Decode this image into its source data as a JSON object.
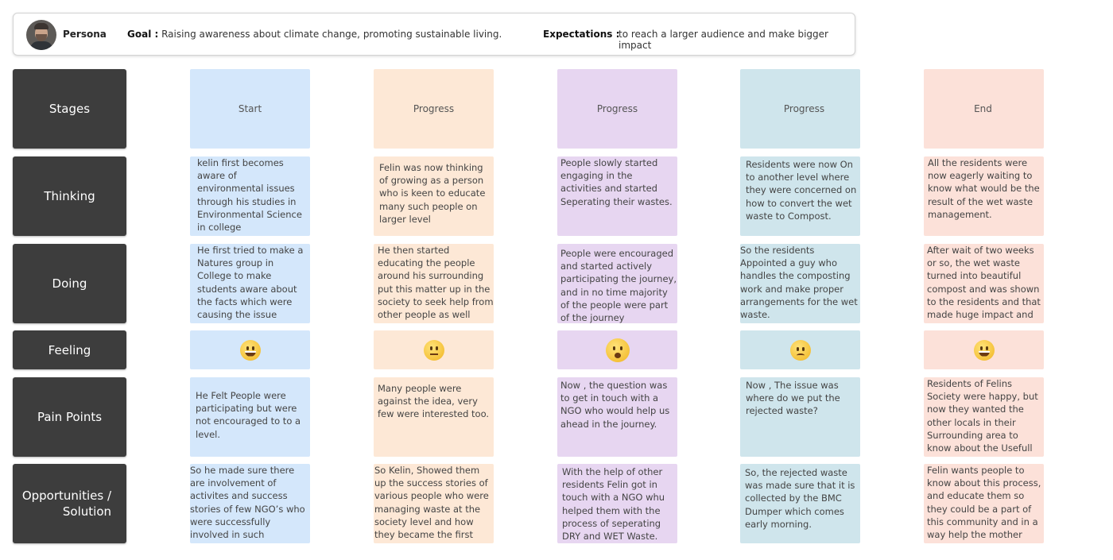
{
  "persona": {
    "label": "Persona",
    "goal_label": "Goal :",
    "goal_text": "Raising awareness about climate change, promoting sustainable living.",
    "expectations_label": "Expectations :",
    "expectations_text": "to reach a larger audience and make bigger impact"
  },
  "rows": {
    "stages": "Stages",
    "thinking": "Thinking",
    "doing": "Doing",
    "feeling": "Feeling",
    "pain_points": "Pain Points",
    "opportunities_line1": "Opportunities /",
    "opportunities_line2": "Solution"
  },
  "colors": {
    "col1": "#d4e7fb",
    "col2": "#fde8d6",
    "col3": "#e7d6f1",
    "col4": "#cfe5ec",
    "col5": "#fce1d9",
    "row_label_bg": "#3d3d3d"
  },
  "columns": [
    {
      "stage": "Start",
      "thinking": "kelin  first becomes aware of environmental issues through his studies in Environmental Science in college",
      "doing": "He  first tried to make a Natures group in College to make students aware about the facts which were causing the issue",
      "feeling_icon": "grinning-face-emoji",
      "pain_points": "He Felt People were participating but were not encouraged  to to a level.",
      "opportunities": "So he made sure there are involvement of activites and success stories of few NGO’s who were successfully involved in such activities"
    },
    {
      "stage": "Progress",
      "thinking": "Felin was now thinking of growing as a person who is keen to educate many such people on larger level",
      "doing": "He then started  educating the people around his surrounding put this matter up in the society to seek help from other people as well",
      "feeling_icon": "neutral-face-emoji",
      "pain_points": "Many people were against the  idea, very few were interested too.",
      "opportunities": "So Kelin, Showed them up the success stories of various people who were managing waste at the society level and how they became the first Garbage free soc in their area."
    },
    {
      "stage": "Progress",
      "thinking": "People slowly started engaging in the activities and started Seperating their wastes.",
      "doing": "People were encouraged and started actively participating the journey, and in no time majority of the people were part of the journey",
      "feeling_icon": "hushed-face-emoji",
      "pain_points": "Now , the question was to get in touch with a NGO who would help us ahead in the journey.",
      "opportunities": "With the help of other residents Felin got in touch with a NGO whu helped them with the process of seperating DRY and WET Waste."
    },
    {
      "stage": "Progress",
      "thinking": "Residents were now On to another level where they were concerned on how to convert the wet waste to Compost.",
      "doing": "So the residents Appointed a guy who handles the composting work and make proper arrangements for the wet waste.",
      "feeling_icon": "worried-face-emoji",
      "pain_points": "Now , The issue was where do we put the rejected waste?",
      "opportunities": "So, the rejected waste was made sure that it is collected by the BMC Dumper which comes early morning."
    },
    {
      "stage": "End",
      "thinking": "All the residents were now eagerly waiting to know what would be the result of the wet waste management.",
      "doing": "After  wait of two weeks or so, the wet waste turned into beautiful compost and was shown to the residents and that made huge impact and success",
      "feeling_icon": "grinning-face-emoji",
      "pain_points": "Residents of  Felins Society were happy, but now they wanted the other locals in their Surrounding area to know about the Usefull process.",
      "opportunities": "Felin wants people to know about this process, and educate them so they could be a part of this community and in a way help the mother earth."
    }
  ]
}
